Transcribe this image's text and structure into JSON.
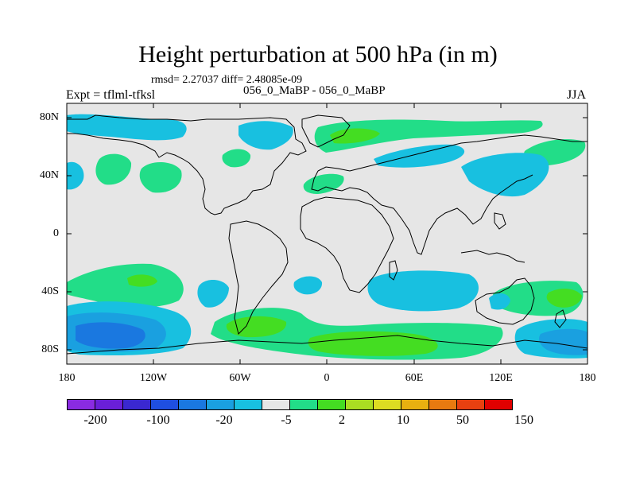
{
  "title": "Height perturbation at 500 hPa (in m)",
  "stats": "rmsd= 2.27037  diff= 2.48085e-09",
  "subtitle": "056_0_MaBP - 056_0_MaBP",
  "left_label": "Expt = tflml-tfksl",
  "right_label": "JJA",
  "lat_ticks": [
    "80N",
    "40N",
    "0",
    "40S",
    "80S"
  ],
  "lon_ticks": [
    "180",
    "120W",
    "60W",
    "0",
    "60E",
    "120E",
    "180"
  ],
  "colorbar": {
    "colors": [
      "#8a2be2",
      "#6a1fd8",
      "#3a28d0",
      "#1f4fe0",
      "#1a78e0",
      "#1aa0e0",
      "#18c0e0",
      "#e6e6e6",
      "#22dd88",
      "#44dd22",
      "#aade22",
      "#dddd22",
      "#e8b010",
      "#e87a10",
      "#e84010",
      "#e00000"
    ],
    "labels": [
      "-200",
      "-100",
      "-20",
      "-5",
      "2",
      "10",
      "50",
      "150"
    ]
  },
  "colors": {
    "background": "#e6e6e6",
    "coast": "#000000"
  }
}
